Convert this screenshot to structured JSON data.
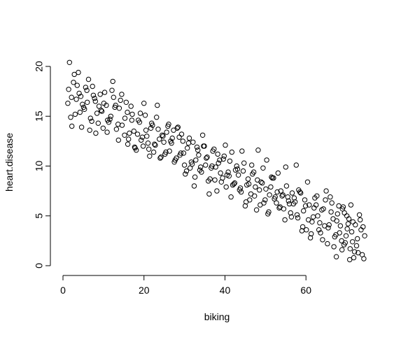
{
  "chart_data": {
    "type": "scatter",
    "title": "",
    "xlabel": "biking",
    "ylabel": "heart.disease",
    "xlim": [
      0,
      75
    ],
    "ylim": [
      0,
      21
    ],
    "xticks": [
      0,
      20,
      40,
      60
    ],
    "yticks": [
      0,
      5,
      10,
      15,
      20
    ],
    "grid": false,
    "marker": "open-circle",
    "series": [
      {
        "x": [
          1.4,
          1.6,
          2.1,
          2.8,
          3.5,
          4.2,
          4.8,
          5.6,
          6.3,
          7.1,
          7.8,
          8.4,
          9.2,
          9.9,
          10.7,
          11.3,
          12.1,
          12.8,
          13.6,
          14.2,
          1.2,
          1.9,
          2.6,
          3.3,
          4.0,
          4.6,
          5.3,
          6.0,
          6.8,
          7.5,
          8.1,
          8.9,
          9.6,
          10.3,
          11.0,
          11.8,
          12.5,
          13.2,
          13.9,
          14.6,
          2.2,
          3.0,
          3.8,
          4.4,
          5.1,
          5.9,
          6.6,
          7.3,
          8.0,
          8.7,
          9.4,
          10.1,
          10.9,
          11.6,
          12.3,
          13.0,
          13.7,
          14.5,
          15.2,
          15.9,
          15.3,
          16.0,
          16.8,
          17.5,
          18.1,
          18.9,
          19.6,
          20.3,
          21.0,
          21.7,
          22.4,
          23.1,
          23.8,
          24.5,
          25.2,
          25.9,
          26.6,
          27.3,
          28.0,
          28.7,
          15.6,
          16.4,
          17.1,
          17.8,
          18.6,
          19.3,
          20.0,
          20.7,
          21.4,
          22.1,
          22.8,
          23.5,
          24.2,
          24.9,
          25.6,
          26.3,
          27.0,
          27.7,
          28.4,
          29.1,
          16.2,
          17.0,
          17.7,
          18.4,
          19.1,
          19.8,
          20.5,
          21.2,
          21.9,
          22.6,
          23.3,
          24.0,
          24.7,
          25.4,
          26.1,
          26.8,
          27.5,
          28.2,
          28.9,
          29.6,
          29.3,
          30.0,
          30.7,
          31.4,
          32.1,
          32.8,
          33.5,
          34.2,
          34.9,
          35.6,
          36.3,
          37.0,
          37.7,
          38.4,
          39.1,
          39.8,
          40.5,
          41.2,
          41.9,
          42.6,
          29.8,
          30.5,
          31.2,
          31.9,
          32.6,
          33.3,
          34.0,
          34.7,
          35.4,
          36.1,
          36.8,
          37.5,
          38.2,
          38.9,
          39.6,
          40.3,
          41.0,
          41.7,
          42.4,
          43.1,
          30.2,
          31.0,
          31.7,
          32.4,
          33.1,
          33.8,
          34.5,
          35.2,
          35.9,
          36.6,
          37.3,
          38.0,
          38.7,
          39.4,
          40.1,
          40.8,
          41.5,
          42.2,
          42.9,
          43.6,
          43.3,
          44.0,
          44.7,
          45.4,
          46.1,
          46.8,
          47.5,
          48.2,
          48.9,
          49.6,
          50.3,
          51.0,
          51.7,
          52.4,
          53.1,
          53.8,
          54.5,
          55.2,
          55.9,
          56.6,
          43.8,
          44.5,
          45.2,
          45.9,
          46.6,
          47.3,
          48.0,
          48.7,
          49.4,
          50.1,
          50.8,
          51.5,
          52.2,
          52.9,
          53.6,
          54.3,
          55.0,
          55.7,
          56.4,
          57.1,
          44.2,
          45.0,
          45.7,
          46.4,
          47.1,
          47.8,
          48.5,
          49.2,
          49.9,
          50.6,
          51.3,
          52.0,
          52.7,
          53.4,
          54.1,
          54.8,
          55.5,
          56.2,
          56.9,
          57.6,
          57.3,
          58.0,
          58.7,
          59.4,
          60.1,
          60.8,
          61.5,
          62.2,
          62.9,
          63.6,
          64.3,
          65.0,
          65.7,
          66.4,
          67.1,
          67.8,
          68.5,
          69.2,
          69.9,
          70.6,
          57.8,
          58.5,
          59.2,
          59.9,
          60.6,
          61.3,
          62.0,
          62.7,
          63.4,
          64.1,
          64.8,
          65.5,
          66.2,
          66.9,
          67.6,
          68.3,
          69.0,
          69.7,
          70.4,
          71.1,
          58.2,
          59.0,
          59.7,
          60.4,
          61.1,
          61.8,
          62.5,
          63.2,
          63.9,
          64.6,
          65.3,
          66.0,
          66.7,
          67.4,
          68.1,
          68.8,
          69.5,
          70.2,
          70.9,
          71.6,
          71.3,
          72.0,
          72.7,
          73.4,
          74.1,
          71.8,
          72.5,
          73.2,
          73.9,
          74.5,
          70.8,
          71.5,
          72.2,
          72.9,
          73.6,
          74.3,
          67.5,
          68.9,
          69.4,
          70.1
        ],
        "y": [
          17.7,
          20.4,
          16.9,
          19.2,
          18.1,
          15.4,
          16.2,
          17.9,
          18.7,
          14.5,
          16.8,
          15.3,
          17.2,
          13.8,
          16.1,
          14.4,
          17.6,
          15.9,
          14.2,
          16.6,
          16.3,
          14.9,
          18.4,
          16.7,
          17.3,
          13.9,
          15.7,
          16.4,
          14.8,
          17.1,
          13.3,
          16.0,
          15.5,
          17.4,
          14.6,
          15.0,
          16.9,
          13.7,
          15.8,
          14.1,
          14.0,
          15.2,
          19.4,
          17.0,
          15.9,
          17.6,
          13.6,
          18.0,
          16.5,
          14.3,
          15.6,
          16.3,
          13.4,
          14.7,
          18.5,
          16.1,
          12.6,
          17.2,
          13.1,
          15.4,
          14.8,
          12.2,
          16.0,
          13.5,
          11.6,
          14.4,
          12.9,
          15.1,
          12.3,
          13.8,
          11.4,
          14.9,
          12.7,
          13.1,
          11.2,
          14.0,
          12.5,
          13.6,
          10.8,
          12.9,
          16.4,
          13.3,
          15.2,
          11.8,
          14.6,
          12.6,
          16.3,
          13.0,
          11.0,
          14.1,
          12.1,
          13.7,
          10.9,
          12.4,
          13.4,
          11.5,
          12.8,
          10.6,
          13.9,
          11.3,
          12.7,
          14.6,
          11.9,
          13.2,
          15.3,
          12.0,
          13.6,
          11.7,
          14.3,
          12.2,
          16.1,
          10.8,
          13.0,
          11.4,
          14.2,
          12.3,
          10.4,
          13.8,
          11.1,
          12.5,
          13.2,
          10.1,
          11.8,
          9.8,
          12.4,
          10.6,
          11.1,
          9.4,
          12.0,
          10.9,
          8.7,
          11.5,
          9.9,
          10.3,
          8.4,
          11.0,
          9.1,
          10.5,
          8.1,
          9.6,
          11.3,
          9.5,
          12.8,
          10.2,
          8.9,
          11.6,
          9.9,
          12.0,
          10.8,
          7.2,
          10.0,
          8.6,
          11.2,
          9.3,
          10.7,
          7.9,
          9.0,
          11.4,
          8.3,
          9.7,
          9.2,
          12.3,
          10.4,
          8.0,
          11.9,
          9.6,
          13.1,
          10.1,
          8.5,
          9.8,
          11.7,
          7.5,
          10.6,
          8.8,
          12.1,
          9.4,
          6.9,
          8.2,
          10.0,
          7.6,
          9.1,
          7.4,
          10.3,
          8.1,
          6.6,
          9.2,
          7.9,
          11.6,
          8.4,
          6.3,
          10.6,
          7.1,
          8.8,
          6.9,
          9.3,
          7.5,
          5.7,
          8.0,
          6.2,
          7.3,
          7.8,
          9.5,
          6.4,
          8.2,
          10.1,
          7.0,
          8.6,
          6.1,
          9.8,
          7.7,
          5.4,
          8.9,
          6.7,
          7.4,
          5.9,
          7.1,
          9.9,
          6.5,
          4.9,
          6.8,
          11.5,
          6.0,
          8.7,
          7.2,
          9.4,
          5.6,
          7.6,
          8.3,
          6.6,
          5.2,
          7.9,
          8.8,
          6.3,
          5.8,
          7.0,
          4.6,
          6.9,
          5.3,
          6.2,
          10.1,
          6.4,
          4.8,
          7.3,
          5.5,
          3.6,
          6.1,
          4.4,
          6.8,
          5.0,
          3.3,
          5.7,
          7.5,
          4.1,
          6.3,
          2.9,
          5.2,
          4.0,
          5.9,
          3.0,
          4.7,
          5.1,
          7.4,
          3.9,
          6.0,
          4.6,
          3.2,
          5.8,
          7.0,
          4.3,
          2.6,
          6.6,
          3.8,
          5.4,
          1.9,
          4.5,
          3.3,
          5.7,
          2.3,
          4.2,
          6.1,
          7.6,
          3.5,
          6.6,
          8.4,
          2.8,
          4.9,
          6.1,
          3.6,
          5.6,
          4.0,
          2.2,
          6.9,
          4.7,
          3.1,
          6.0,
          2.5,
          5.3,
          3.7,
          1.7,
          4.4,
          3.4,
          1.4,
          2.7,
          4.6,
          3.9,
          0.8,
          2.0,
          5.1,
          1.1,
          3.0,
          0.6,
          2.4,
          4.1,
          1.3,
          3.6,
          0.7,
          0.9,
          1.6,
          2.1,
          5.0
        ]
      }
    ]
  }
}
